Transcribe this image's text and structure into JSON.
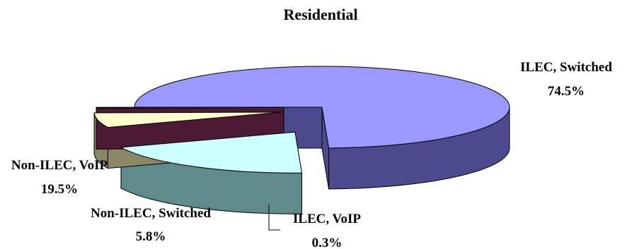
{
  "chart_data": {
    "type": "pie",
    "style": "3d-exploded",
    "title": "Residential",
    "slices": [
      {
        "label": "ILEC, Switched",
        "value": 74.5,
        "value_label": "74.5%",
        "color": "#9999ff",
        "side_color": "#4a4a8c"
      },
      {
        "label": "Non-ILEC, VoIP",
        "value": 19.5,
        "value_label": "19.5%",
        "color": "#ccffff",
        "side_color": "#5f8c8a"
      },
      {
        "label": "Non-ILEC, Switched",
        "value": 5.8,
        "value_label": "5.8%",
        "color": "#ffffcc",
        "side_color": "#8c8766"
      },
      {
        "label": "ILEC, VoIP",
        "value": 0.3,
        "value_label": "0.3%",
        "color": "#993366",
        "side_color": "#4d1a33"
      }
    ],
    "legend": "none"
  }
}
